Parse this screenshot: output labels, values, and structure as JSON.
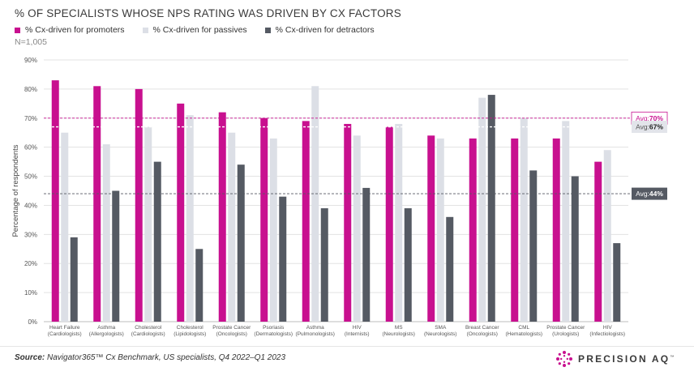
{
  "title": "% OF SPECIALISTS WHOSE NPS RATING WAS DRIVEN BY CX FACTORS",
  "n_label": "N=1,005",
  "source_label": "Source:",
  "source_text": "Navigator365™ Cx Benchmark, US specialists, Q4 2022–Q1 2023",
  "logo": {
    "name": "PRECISION AQ",
    "tm": "™",
    "icon": "dot-flower-icon"
  },
  "colors": {
    "promoters": "#c8108f",
    "passives": "#dcdfe6",
    "detractors": "#555a63",
    "gridline": "#e3e3e3"
  },
  "chart_data": {
    "type": "bar",
    "title": "% OF SPECIALISTS WHOSE NPS RATING WAS DRIVEN BY CX FACTORS",
    "ylabel": "Percentage of respondents",
    "xlabel": "",
    "ylim": [
      0,
      90
    ],
    "yticks": [
      "0%",
      "10%",
      "20%",
      "30%",
      "40%",
      "50%",
      "60%",
      "70%",
      "80%",
      "90%"
    ],
    "categories": [
      [
        "Heart Failure",
        "(Cardiologists)"
      ],
      [
        "Asthma",
        "(Allergologists)"
      ],
      [
        "Cholesterol",
        "(Cardiologists)"
      ],
      [
        "Cholesterol",
        "(Lipidologists)"
      ],
      [
        "Prostate Cancer",
        "(Oncologists)"
      ],
      [
        "Psoriasis",
        "(Dermatologists)"
      ],
      [
        "Asthma",
        "(Pulmonologists)"
      ],
      [
        "HIV",
        "(Internists)"
      ],
      [
        "MS",
        "(Neurologists)"
      ],
      [
        "SMA",
        "(Neurologists)"
      ],
      [
        "Breast Cancer",
        "(Oncologists)"
      ],
      [
        "CML",
        "(Hematologists)"
      ],
      [
        "Prostate Cancer",
        "(Urologists)"
      ],
      [
        "HIV",
        "(Infectiologists)"
      ]
    ],
    "series": [
      {
        "name": "% Cx-driven for promoters",
        "key": "promoters",
        "values": [
          83,
          81,
          80,
          75,
          72,
          70,
          69,
          68,
          67,
          64,
          63,
          63,
          63,
          55
        ]
      },
      {
        "name": "% Cx-driven for passives",
        "key": "passives",
        "values": [
          65,
          61,
          67,
          71,
          65,
          63,
          81,
          64,
          68,
          63,
          77,
          70,
          69,
          59
        ]
      },
      {
        "name": "% Cx-driven for detractors",
        "key": "detractors",
        "values": [
          29,
          45,
          55,
          25,
          54,
          43,
          39,
          46,
          39,
          36,
          78,
          52,
          50,
          27
        ]
      }
    ],
    "averages": [
      {
        "key": "promoters",
        "prefix": "Avg:",
        "value": 70,
        "label": "70%"
      },
      {
        "key": "passives",
        "prefix": "Avg:",
        "value": 67,
        "label": "67%"
      },
      {
        "key": "detractors",
        "prefix": "Avg:",
        "value": 44,
        "label": "44%"
      }
    ],
    "grid": true,
    "legend": "top-left"
  }
}
